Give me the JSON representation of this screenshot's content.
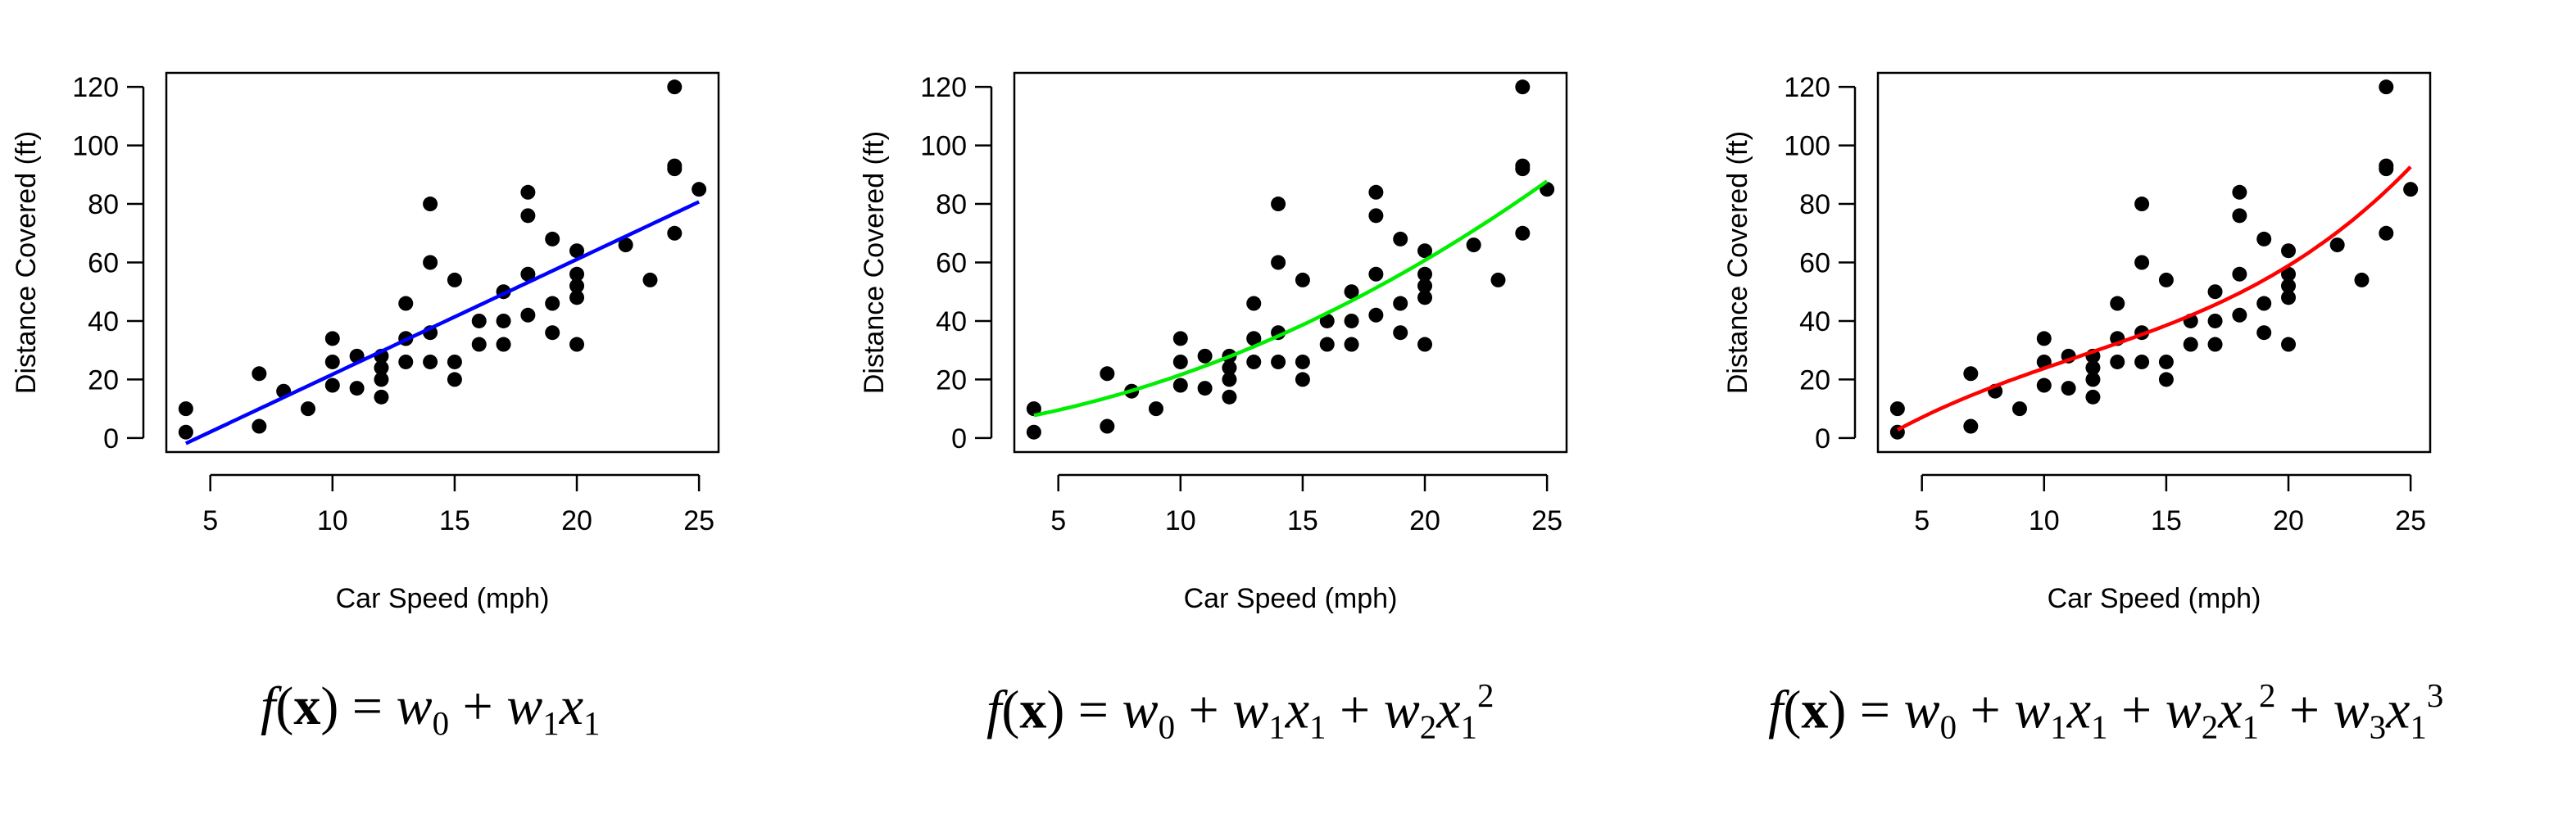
{
  "chart_data": [
    {
      "type": "scatter",
      "xlabel": "Car Speed (mph)",
      "ylabel": "Distance Covered (ft)",
      "xlim": [
        4,
        25
      ],
      "ylim": [
        0,
        120
      ],
      "xticks": [
        5,
        10,
        15,
        20,
        25
      ],
      "yticks": [
        0,
        20,
        40,
        60,
        80,
        100,
        120
      ],
      "grid": false,
      "fit": {
        "degree": 1,
        "color": "#0000ff",
        "coefficients": [
          -17.579,
          3.932
        ]
      },
      "formula": "f(x) = w0 + w1x1",
      "points": [
        [
          4,
          2
        ],
        [
          4,
          10
        ],
        [
          7,
          4
        ],
        [
          7,
          22
        ],
        [
          8,
          16
        ],
        [
          9,
          10
        ],
        [
          10,
          18
        ],
        [
          10,
          26
        ],
        [
          10,
          34
        ],
        [
          11,
          17
        ],
        [
          11,
          28
        ],
        [
          12,
          14
        ],
        [
          12,
          20
        ],
        [
          12,
          24
        ],
        [
          12,
          28
        ],
        [
          13,
          26
        ],
        [
          13,
          34
        ],
        [
          13,
          34
        ],
        [
          13,
          46
        ],
        [
          14,
          26
        ],
        [
          14,
          36
        ],
        [
          14,
          60
        ],
        [
          14,
          80
        ],
        [
          15,
          20
        ],
        [
          15,
          26
        ],
        [
          15,
          54
        ],
        [
          16,
          32
        ],
        [
          16,
          40
        ],
        [
          17,
          32
        ],
        [
          17,
          40
        ],
        [
          17,
          50
        ],
        [
          18,
          42
        ],
        [
          18,
          56
        ],
        [
          18,
          76
        ],
        [
          18,
          84
        ],
        [
          19,
          36
        ],
        [
          19,
          46
        ],
        [
          19,
          68
        ],
        [
          20,
          32
        ],
        [
          20,
          48
        ],
        [
          20,
          52
        ],
        [
          20,
          56
        ],
        [
          20,
          64
        ],
        [
          22,
          66
        ],
        [
          23,
          54
        ],
        [
          24,
          70
        ],
        [
          24,
          92
        ],
        [
          24,
          93
        ],
        [
          24,
          120
        ],
        [
          25,
          85
        ]
      ]
    },
    {
      "type": "scatter",
      "xlabel": "Car Speed (mph)",
      "ylabel": "Distance Covered (ft)",
      "xlim": [
        4,
        25
      ],
      "ylim": [
        0,
        120
      ],
      "xticks": [
        5,
        10,
        15,
        20,
        25
      ],
      "yticks": [
        0,
        20,
        40,
        60,
        80,
        100,
        120
      ],
      "grid": false,
      "fit": {
        "degree": 2,
        "color": "#00ee00",
        "coefficients": [
          2.47,
          0.913,
          0.1
        ]
      },
      "formula": "f(x) = w0 + w1x1 + w2x1^2",
      "points": [
        [
          4,
          2
        ],
        [
          4,
          10
        ],
        [
          7,
          4
        ],
        [
          7,
          22
        ],
        [
          8,
          16
        ],
        [
          9,
          10
        ],
        [
          10,
          18
        ],
        [
          10,
          26
        ],
        [
          10,
          34
        ],
        [
          11,
          17
        ],
        [
          11,
          28
        ],
        [
          12,
          14
        ],
        [
          12,
          20
        ],
        [
          12,
          24
        ],
        [
          12,
          28
        ],
        [
          13,
          26
        ],
        [
          13,
          34
        ],
        [
          13,
          34
        ],
        [
          13,
          46
        ],
        [
          14,
          26
        ],
        [
          14,
          36
        ],
        [
          14,
          60
        ],
        [
          14,
          80
        ],
        [
          15,
          20
        ],
        [
          15,
          26
        ],
        [
          15,
          54
        ],
        [
          16,
          32
        ],
        [
          16,
          40
        ],
        [
          17,
          32
        ],
        [
          17,
          40
        ],
        [
          17,
          50
        ],
        [
          18,
          42
        ],
        [
          18,
          56
        ],
        [
          18,
          76
        ],
        [
          18,
          84
        ],
        [
          19,
          36
        ],
        [
          19,
          46
        ],
        [
          19,
          68
        ],
        [
          20,
          32
        ],
        [
          20,
          48
        ],
        [
          20,
          52
        ],
        [
          20,
          56
        ],
        [
          20,
          64
        ],
        [
          22,
          66
        ],
        [
          23,
          54
        ],
        [
          24,
          70
        ],
        [
          24,
          92
        ],
        [
          24,
          93
        ],
        [
          24,
          120
        ],
        [
          25,
          85
        ]
      ]
    },
    {
      "type": "scatter",
      "xlabel": "Car Speed (mph)",
      "ylabel": "Distance Covered (ft)",
      "xlim": [
        4,
        25
      ],
      "ylim": [
        0,
        120
      ],
      "xticks": [
        5,
        10,
        15,
        20,
        25
      ],
      "yticks": [
        0,
        20,
        40,
        60,
        80,
        100,
        120
      ],
      "grid": false,
      "fit": {
        "degree": 3,
        "color": "#ff0000",
        "coefficients": [
          -19.5,
          6.8,
          -0.35,
          0.0103
        ]
      },
      "formula": "f(x) = w0 + w1x1 + w2x1^2 + w3x1^3",
      "points": [
        [
          4,
          2
        ],
        [
          4,
          10
        ],
        [
          7,
          4
        ],
        [
          7,
          22
        ],
        [
          8,
          16
        ],
        [
          9,
          10
        ],
        [
          10,
          18
        ],
        [
          10,
          26
        ],
        [
          10,
          34
        ],
        [
          11,
          17
        ],
        [
          11,
          28
        ],
        [
          12,
          14
        ],
        [
          12,
          20
        ],
        [
          12,
          24
        ],
        [
          12,
          28
        ],
        [
          13,
          26
        ],
        [
          13,
          34
        ],
        [
          13,
          34
        ],
        [
          13,
          46
        ],
        [
          14,
          26
        ],
        [
          14,
          36
        ],
        [
          14,
          60
        ],
        [
          14,
          80
        ],
        [
          15,
          20
        ],
        [
          15,
          26
        ],
        [
          15,
          54
        ],
        [
          16,
          32
        ],
        [
          16,
          40
        ],
        [
          17,
          32
        ],
        [
          17,
          40
        ],
        [
          17,
          50
        ],
        [
          18,
          42
        ],
        [
          18,
          56
        ],
        [
          18,
          76
        ],
        [
          18,
          84
        ],
        [
          19,
          36
        ],
        [
          19,
          46
        ],
        [
          19,
          68
        ],
        [
          20,
          32
        ],
        [
          20,
          48
        ],
        [
          20,
          52
        ],
        [
          20,
          56
        ],
        [
          20,
          64
        ],
        [
          22,
          66
        ],
        [
          23,
          54
        ],
        [
          24,
          70
        ],
        [
          24,
          92
        ],
        [
          24,
          93
        ],
        [
          24,
          120
        ],
        [
          25,
          85
        ]
      ]
    }
  ]
}
